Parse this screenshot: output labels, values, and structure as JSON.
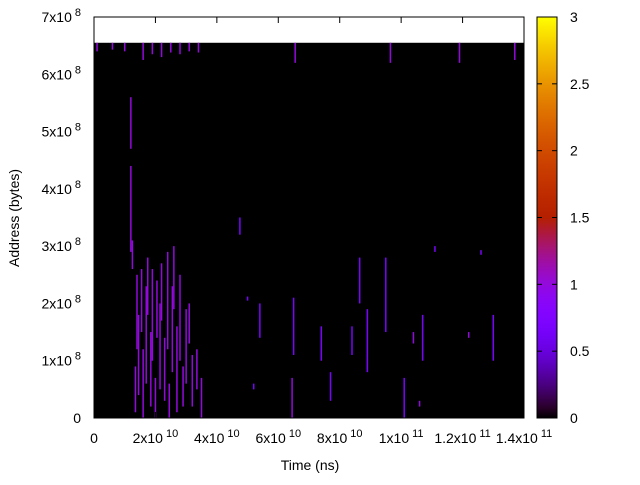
{
  "chart_data": {
    "type": "heatmap",
    "xlabel": "Time (ns)",
    "ylabel": "Address (bytes)",
    "xlim": [
      0,
      140000000000
    ],
    "ylim": [
      0,
      700000000
    ],
    "xticks": [
      0,
      {
        "value": 20000000000,
        "label": "2x10^10"
      },
      {
        "value": 40000000000,
        "label": "4x10^10"
      },
      {
        "value": 60000000000,
        "label": "6x10^10"
      },
      {
        "value": 80000000000,
        "label": "8x10^10"
      },
      {
        "value": 100000000000,
        "label": "1x10^11"
      },
      {
        "value": 120000000000,
        "label": "1.2x10^11"
      },
      {
        "value": 140000000000,
        "label": "1.4x10^11"
      }
    ],
    "yticks": [
      0,
      {
        "value": 100000000,
        "label": "1x10^8"
      },
      {
        "value": 200000000,
        "label": "2x10^8"
      },
      {
        "value": 300000000,
        "label": "3x10^8"
      },
      {
        "value": 400000000,
        "label": "4x10^8"
      },
      {
        "value": 500000000,
        "label": "5x10^8"
      },
      {
        "value": 600000000,
        "label": "6x10^8"
      },
      {
        "value": 700000000,
        "label": "7x10^8"
      }
    ],
    "data_yrange": [
      0,
      655000000
    ],
    "clim": [
      0,
      3
    ],
    "cticks": [
      0,
      0.5,
      1,
      1.5,
      2,
      2.5,
      3
    ],
    "colormap": "gnuplot",
    "streaks": [
      [
        12000000000,
        470000000,
        560000000,
        1
      ],
      [
        12000000000,
        290000000,
        440000000,
        1
      ],
      [
        12500000000,
        260000000,
        310000000,
        1
      ],
      [
        13500000000,
        10000000,
        90000000,
        1
      ],
      [
        14000000000,
        120000000,
        250000000,
        1
      ],
      [
        14500000000,
        40000000,
        180000000,
        1
      ],
      [
        15500000000,
        150000000,
        260000000,
        1
      ],
      [
        16000000000,
        0,
        120000000,
        1
      ],
      [
        17000000000,
        60000000,
        230000000,
        1
      ],
      [
        17500000000,
        180000000,
        280000000,
        1
      ],
      [
        18500000000,
        20000000,
        150000000,
        1
      ],
      [
        19000000000,
        100000000,
        260000000,
        1
      ],
      [
        20000000000,
        0,
        70000000,
        1
      ],
      [
        20500000000,
        140000000,
        240000000,
        1
      ],
      [
        21500000000,
        50000000,
        200000000,
        1
      ],
      [
        22000000000,
        170000000,
        270000000,
        1
      ],
      [
        23000000000,
        30000000,
        140000000,
        1
      ],
      [
        24000000000,
        120000000,
        290000000,
        1
      ],
      [
        24500000000,
        0,
        60000000,
        1
      ],
      [
        25500000000,
        80000000,
        230000000,
        1
      ],
      [
        26000000000,
        190000000,
        300000000,
        1
      ],
      [
        27000000000,
        10000000,
        160000000,
        1
      ],
      [
        28000000000,
        100000000,
        250000000,
        1
      ],
      [
        29000000000,
        20000000,
        90000000,
        1
      ],
      [
        30000000000,
        60000000,
        190000000,
        1
      ],
      [
        31000000000,
        130000000,
        200000000,
        1
      ],
      [
        32000000000,
        20000000,
        110000000,
        1
      ],
      [
        33500000000,
        50000000,
        120000000,
        1
      ],
      [
        35000000000,
        0,
        70000000,
        1
      ],
      [
        1000000000,
        640000000,
        655000000,
        1
      ],
      [
        6000000000,
        643000000,
        655000000,
        1
      ],
      [
        10000000000,
        640000000,
        655000000,
        1
      ],
      [
        16000000000,
        625000000,
        655000000,
        1
      ],
      [
        19000000000,
        635000000,
        655000000,
        1
      ],
      [
        22000000000,
        630000000,
        655000000,
        1
      ],
      [
        25000000000,
        638000000,
        655000000,
        1
      ],
      [
        28000000000,
        635000000,
        655000000,
        1
      ],
      [
        31000000000,
        640000000,
        655000000,
        1
      ],
      [
        34000000000,
        638000000,
        655000000,
        1
      ],
      [
        47500000000,
        320000000,
        350000000,
        0.7
      ],
      [
        50000000000,
        205000000,
        212000000,
        0.7
      ],
      [
        52000000000,
        50000000,
        60000000,
        0.7
      ],
      [
        54000000000,
        140000000,
        200000000,
        0.7
      ],
      [
        64500000000,
        0,
        70000000,
        1
      ],
      [
        65000000000,
        110000000,
        210000000,
        0.7
      ],
      [
        65500000000,
        620000000,
        655000000,
        1
      ],
      [
        74000000000,
        100000000,
        160000000,
        0.7
      ],
      [
        77000000000,
        30000000,
        80000000,
        0.7
      ],
      [
        84000000000,
        110000000,
        160000000,
        0.7
      ],
      [
        86500000000,
        200000000,
        280000000,
        0.7
      ],
      [
        89000000000,
        80000000,
        190000000,
        0.7
      ],
      [
        95000000000,
        150000000,
        280000000,
        0.7
      ],
      [
        96500000000,
        620000000,
        655000000,
        1
      ],
      [
        101000000000,
        0,
        70000000,
        0.7
      ],
      [
        104000000000,
        130000000,
        150000000,
        1
      ],
      [
        106000000000,
        20000000,
        30000000,
        1
      ],
      [
        107000000000,
        100000000,
        180000000,
        0.7
      ],
      [
        111000000000,
        290000000,
        300000000,
        0.7
      ],
      [
        119000000000,
        620000000,
        655000000,
        1
      ],
      [
        122000000000,
        140000000,
        150000000,
        1
      ],
      [
        126000000000,
        285000000,
        293000000,
        0.7
      ],
      [
        130000000000,
        100000000,
        180000000,
        0.7
      ],
      [
        137000000000,
        625000000,
        655000000,
        1
      ]
    ]
  }
}
